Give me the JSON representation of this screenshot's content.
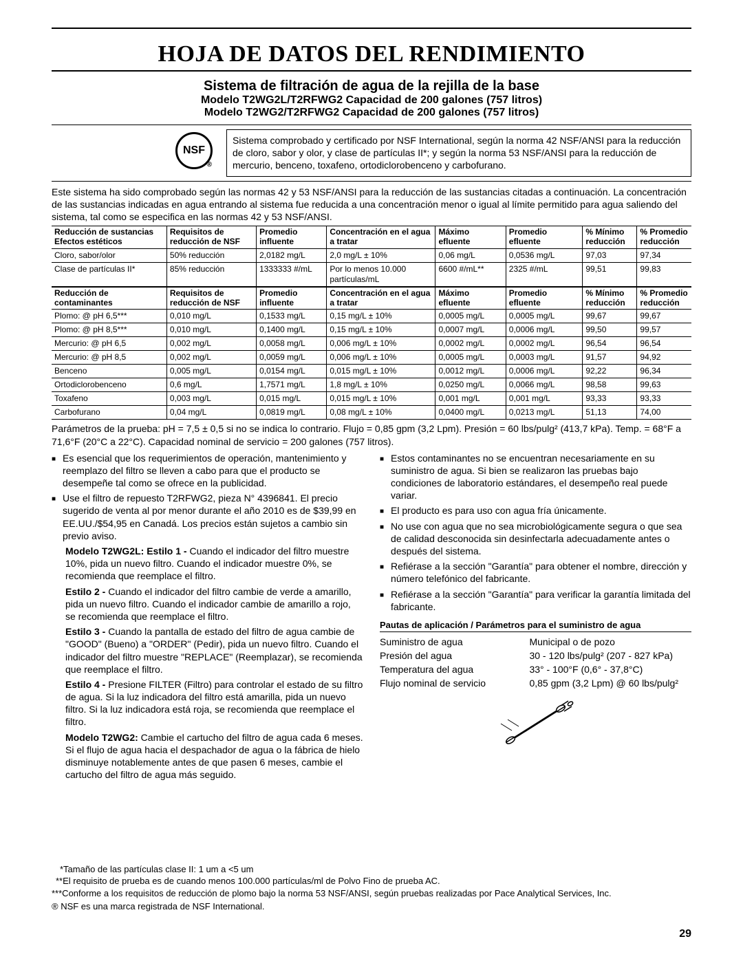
{
  "title": "HOJA DE DATOS DEL RENDIMIENTO",
  "subtitle1": "Sistema de filtración de agua de la rejilla de la base",
  "subtitle2": "Modelo T2WG2L/T2RFWG2 Capacidad de 200 galones (757 litros)",
  "subtitle3": "Modelo T2WG2/T2RFWG2 Capacidad de 200 galones (757 litros)",
  "nsf_label": "NSF",
  "cert_text": "Sistema comprobado y certificado por NSF International, según la norma 42 NSF/ANSI para la reducción de cloro, sabor y olor, y clase de partículas II*; y según la norma 53 NSF/ANSI para la reducción de mercurio, benceno, toxafeno, ortodiclorobenceno y carbofurano.",
  "intro_para": "Este sistema ha sido comprobado según las normas 42 y 53 NSF/ANSI para la reducción de las sustancias citadas a continuación. La concentración de las sustancias indicadas en agua entrando al sistema fue reducida a una concentración menor o igual al límite permitido para agua saliendo del sistema, tal como se especifica en las normas 42 y 53 NSF/ANSI.",
  "table1": {
    "headers": [
      "Reducción de sustancias Efectos estéticos",
      "Requisitos de reducción de NSF",
      "Promedio influente",
      "Concentración en el agua a tratar",
      "Máximo efluente",
      "Promedio efluente",
      "% Mínimo reducción",
      "% Promedio reducción"
    ],
    "rows": [
      [
        "Cloro, sabor/olor",
        "50% reducción",
        "2,0182 mg/L",
        "2,0 mg/L ± 10%",
        "0,06 mg/L",
        "0,0536 mg/L",
        "97,03",
        "97,34"
      ],
      [
        "Clase de partículas II*",
        "85% reducción",
        "1333333 #/mL",
        "Por lo menos 10.000 partículas/mL",
        "6600 #/mL**",
        "2325 #/mL",
        "99,51",
        "99,83"
      ]
    ]
  },
  "table2": {
    "headers": [
      "Reducción de contaminantes",
      "Requisitos de reducción de NSF",
      "Promedio influente",
      "Concentración en el agua a tratar",
      "Máximo efluente",
      "Promedio efluente",
      "% Mínimo reducción",
      "% Promedio reducción"
    ],
    "rows": [
      [
        "Plomo: @ pH 6,5***",
        "0,010 mg/L",
        "0,1533 mg/L",
        "0,15 mg/L ± 10%",
        "0,0005 mg/L",
        "0,0005 mg/L",
        "99,67",
        "99,67"
      ],
      [
        "Plomo: @ pH 8,5***",
        "0,010 mg/L",
        "0,1400 mg/L",
        "0,15 mg/L ± 10%",
        "0,0007 mg/L",
        "0,0006 mg/L",
        "99,50",
        "99,57"
      ],
      [
        "Mercurio: @ pH 6,5",
        "0,002 mg/L",
        "0,0058 mg/L",
        "0,006 mg/L ± 10%",
        "0,0002 mg/L",
        "0,0002 mg/L",
        "96,54",
        "96,54"
      ],
      [
        "Mercurio: @ pH 8,5",
        "0,002 mg/L",
        "0,0059 mg/L",
        "0,006 mg/L ± 10%",
        "0,0005 mg/L",
        "0,0003 mg/L",
        "91,57",
        "94,92"
      ],
      [
        "Benceno",
        "0,005 mg/L",
        "0,0154 mg/L",
        "0,015 mg/L ± 10%",
        "0,0012 mg/L",
        "0,0006 mg/L",
        "92,22",
        "96,34"
      ],
      [
        "Ortodiclorobenceno",
        "0,6 mg/L",
        "1,7571 mg/L",
        "1,8 mg/L ± 10%",
        "0,0250 mg/L",
        "0,0066 mg/L",
        "98,58",
        "99,63"
      ],
      [
        "Toxafeno",
        "0,003 mg/L",
        "0,015 mg/L",
        "0,015 mg/L ± 10%",
        "0,001 mg/L",
        "0,001 mg/L",
        "93,33",
        "93,33"
      ],
      [
        "Carbofurano",
        "0,04 mg/L",
        "0,0819 mg/L",
        "0,08 mg/L ± 10%",
        "0,0400 mg/L",
        "0,0213 mg/L",
        "51,13",
        "74,00"
      ]
    ]
  },
  "params_line": "Parámetros de la prueba: pH = 7,5 ± 0,5 si no se indica lo contrario. Flujo = 0,85 gpm (3,2 Lpm). Presión = 60 lbs/pulg² (413,7 kPa). Temp. = 68°F a 71,6°F (20°C a 22°C). Capacidad nominal de servicio = 200 galones (757 litros).",
  "left_bullets": [
    "Es esencial que los requerimientos de operación, mantenimiento y reemplazo del filtro se lleven a cabo para que el producto se desempeñe tal como se ofrece en la publicidad.",
    "Use el filtro de repuesto T2RFWG2, pieza N° 4396841. El precio sugerido de venta al por menor durante el año 2010 es de $39,99 en EE.UU./$54,95 en Canadá. Los precios están sujetos a cambio sin previo aviso."
  ],
  "left_paras": [
    {
      "bold": "Modelo T2WG2L: Estilo 1 -",
      "text": " Cuando el indicador del filtro muestre 10%, pida un nuevo filtro. Cuando el indicador muestre 0%, se recomienda que reemplace el filtro."
    },
    {
      "bold": "Estilo 2 -",
      "text": " Cuando el indicador del filtro cambie de verde a amarillo, pida un nuevo filtro. Cuando el indicador cambie de amarillo a rojo, se recomienda que reemplace el filtro."
    },
    {
      "bold": "Estilo 3 -",
      "text": " Cuando la pantalla de estado del filtro de agua cambie de \"GOOD\" (Bueno) a \"ORDER\" (Pedir), pida un nuevo filtro. Cuando el indicador del filtro muestre \"REPLACE\" (Reemplazar), se recomienda que reemplace el filtro."
    },
    {
      "bold": "Estilo 4 -",
      "text": " Presione FILTER (Filtro) para controlar el estado de su filtro de agua. Si la luz indicadora del filtro está amarilla, pida un nuevo filtro. Si la luz indicadora está roja, se recomienda que reemplace el filtro."
    },
    {
      "bold": "Modelo T2WG2:",
      "text": " Cambie el cartucho del filtro de agua cada 6 meses. Si el flujo de agua hacia el despachador de agua o la fábrica de hielo disminuye notablemente antes de que pasen 6 meses, cambie el cartucho del filtro de agua más seguido."
    }
  ],
  "right_bullets": [
    "Estos contaminantes no se encuentran necesariamente en su suministro de agua. Si bien se realizaron las pruebas bajo condiciones de laboratorio estándares, el desempeño real puede variar.",
    "El producto es para uso con agua fría únicamente.",
    "No use con agua que no sea microbiológicamente segura o que sea de calidad desconocida sin desinfectarla adecuadamente antes o después del sistema.",
    "Refiérase a la sección \"Garantía\" para obtener el nombre, dirección y número telefónico del fabricante.",
    "Refiérase a la sección \"Garantía\" para verificar la garantía limitada del fabricante."
  ],
  "guidelines_heading": "Pautas de aplicación / Parámetros para el suministro de agua",
  "guidelines": {
    "rows": [
      [
        "Suministro de agua",
        "Municipal o de pozo"
      ],
      [
        "Presión del agua",
        "30 - 120 lbs/pulg² (207 - 827 kPa)"
      ],
      [
        "Temperatura del agua",
        "33° - 100°F (0,6° - 37,8°C)"
      ],
      [
        "Flujo nominal de servicio",
        "0,85 gpm (3,2 Lpm) @ 60 lbs/pulg²"
      ]
    ]
  },
  "footnotes": [
    "*Tamaño de las partículas clase II: 1 um a <5 um",
    "**El requisito de prueba es de cuando menos 100.000 partículas/ml de Polvo Fino de prueba AC.",
    "***Conforme a los requisitos de reducción de plomo bajo la norma 53 NSF/ANSI, según pruebas realizadas por Pace Analytical Services, Inc."
  ],
  "trademark": "® NSF es una marca registrada de NSF International.",
  "page_num": "29"
}
